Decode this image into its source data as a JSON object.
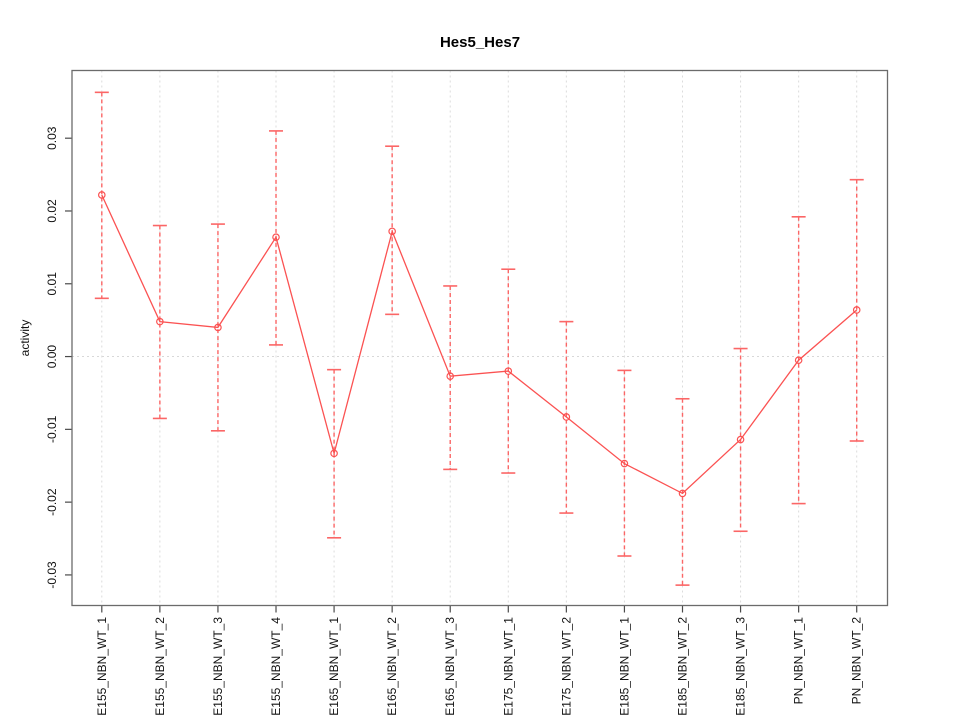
{
  "figure": {
    "background": "#ffffff"
  },
  "chart_data": {
    "type": "line",
    "title": "Hes5_Hes7",
    "xlabel": "",
    "ylabel": "activity",
    "legend_position": "none",
    "grid": "vertical dotted gridline at each category; dotted horizontal reference line at y=0",
    "ylim": [
      -0.0342,
      0.0393
    ],
    "yticks": [
      {
        "value": 0.03,
        "label": "0.03"
      },
      {
        "value": 0.02,
        "label": "0.02"
      },
      {
        "value": 0.01,
        "label": "0.01"
      },
      {
        "value": 0.0,
        "label": "0.00"
      },
      {
        "value": -0.01,
        "label": "-0.01"
      },
      {
        "value": -0.02,
        "label": "-0.02"
      },
      {
        "value": -0.03,
        "label": "-0.03"
      }
    ],
    "categories": [
      "E155_NBN_WT_1",
      "E155_NBN_WT_2",
      "E155_NBN_WT_3",
      "E155_NBN_WT_4",
      "E165_NBN_WT_1",
      "E165_NBN_WT_2",
      "E165_NBN_WT_3",
      "E175_NBN_WT_1",
      "E175_NBN_WT_2",
      "E185_NBN_WT_1",
      "E185_NBN_WT_2",
      "E185_NBN_WT_3",
      "PN_NBN_WT_1",
      "PN_NBN_WT_2"
    ],
    "series": [
      {
        "name": "activity",
        "marker": "open-circle",
        "values": [
          0.0222,
          0.0048,
          0.004,
          0.0164,
          -0.0133,
          0.0172,
          -0.0027,
          -0.002,
          -0.0083,
          -0.0147,
          -0.0188,
          -0.0114,
          -0.0005,
          0.0064
        ],
        "error_low": [
          0.008,
          -0.0085,
          -0.0102,
          0.0016,
          -0.0249,
          0.0058,
          -0.0155,
          -0.016,
          -0.0215,
          -0.0274,
          -0.0314,
          -0.024,
          -0.0202,
          -0.0116
        ],
        "error_high": [
          0.0363,
          0.018,
          0.0182,
          0.031,
          -0.0018,
          0.0289,
          0.0097,
          0.012,
          0.0048,
          -0.0019,
          -0.0058,
          0.0011,
          0.0192,
          0.0243
        ]
      }
    ],
    "colors": {
      "series_line": "#fb5252",
      "error_bar": "#fb6666",
      "gridline": "#dcdcdc",
      "zero_line": "#d8d8d8",
      "axis_box": "#6b6b6b",
      "tick": "#4a4a4a",
      "label_text": "#111111",
      "background": "#ffffff"
    }
  }
}
